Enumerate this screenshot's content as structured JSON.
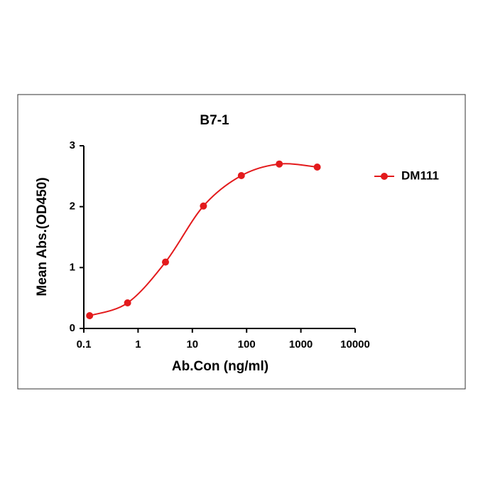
{
  "chart_data": {
    "type": "scatter",
    "title": "B7-1",
    "x_label": "Ab.Con (ng/ml)",
    "y_label": "Mean Abs.(OD450)",
    "x_scale": "log",
    "x": [
      0.128,
      0.64,
      3.2,
      16,
      80,
      400,
      2000
    ],
    "series": [
      {
        "name": "DM111",
        "color": "#e31a1c",
        "values": [
          0.21,
          0.42,
          1.09,
          2.01,
          2.51,
          2.7,
          2.65
        ]
      }
    ],
    "xlim": [
      0.1,
      10000
    ],
    "xticks": [
      0.1,
      1,
      10,
      100,
      1000,
      10000
    ],
    "ylim": [
      0,
      3
    ],
    "yticks": [
      0,
      1,
      2,
      3
    ],
    "legend": "right"
  }
}
